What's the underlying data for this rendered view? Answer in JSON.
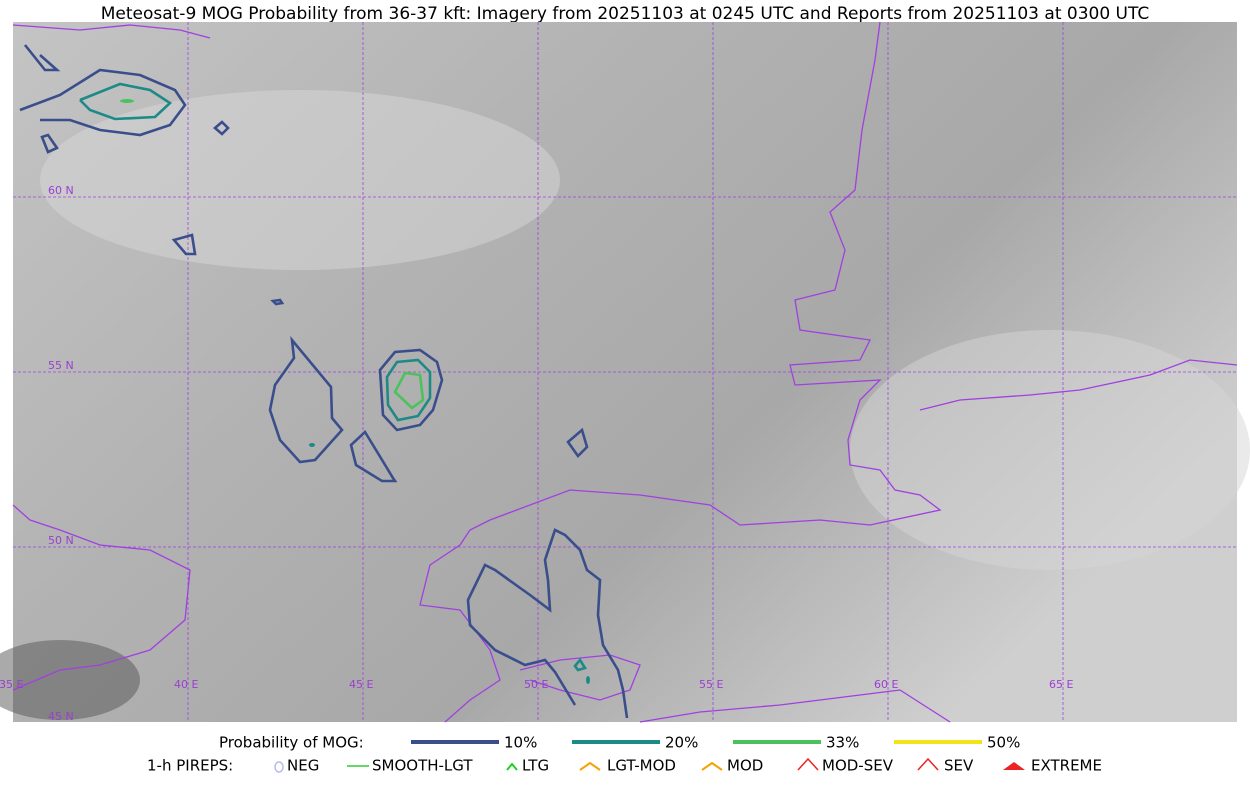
{
  "title": "Meteosat-9 MOG Probability from 36-37 kft: Imagery from 20251103 at 0245 UTC and Reports from 20251103 at 0300 UTC",
  "grid_labels": {
    "lat": [
      "60 N",
      "55 N",
      "50 N",
      "45 N"
    ],
    "lon": [
      "35 E",
      "40 E",
      "45 E",
      "50 E",
      "55 E",
      "60 E",
      "65 E"
    ]
  },
  "legend": {
    "label": "Probability of MOG:",
    "items": [
      {
        "name": "10%",
        "color": "#3a4e8c"
      },
      {
        "name": "20%",
        "color": "#1e8a87"
      },
      {
        "name": "33%",
        "color": "#4cc25c"
      },
      {
        "name": "50%",
        "color": "#f5e31a"
      }
    ]
  },
  "pireps": {
    "label": "1-h PIREPS:",
    "items": [
      "NEG",
      "SMOOTH-LGT",
      "LTG",
      "LGT-MOD",
      "MOD",
      "MOD-SEV",
      "SEV",
      "EXTREME"
    ]
  }
}
